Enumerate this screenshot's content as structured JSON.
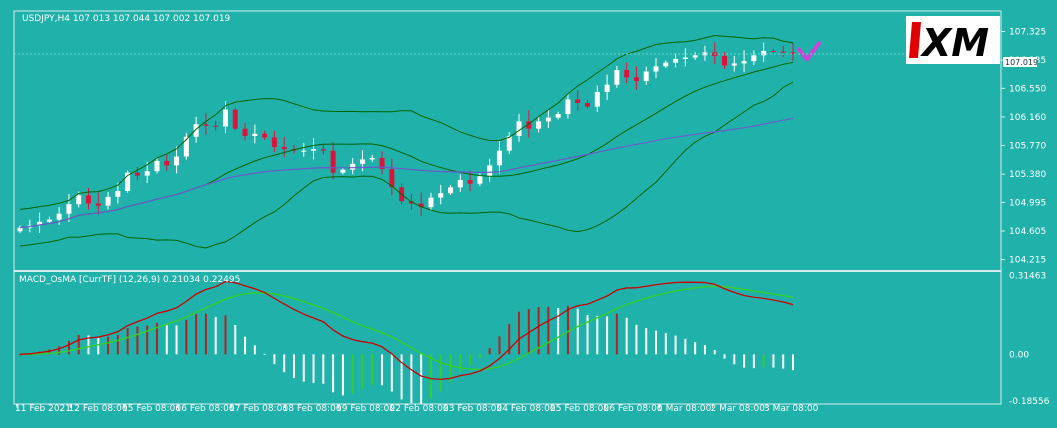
{
  "chart_data": {
    "type": "candlestick",
    "symbol_header": "USDJPY,H4  107.013 107.044 107.002 107.019",
    "current_price": "107.019",
    "price_axis": {
      "ticks": [
        "107.325",
        "106.935",
        "106.550",
        "106.160",
        "105.770",
        "105.380",
        "104.995",
        "104.605",
        "104.215"
      ],
      "ylim": [
        104.1,
        107.55
      ]
    },
    "x_ticks": [
      "11 Feb 2021",
      "12 Feb 08:00",
      "15 Feb 08:00",
      "16 Feb 08:00",
      "17 Feb 08:00",
      "18 Feb 08:00",
      "19 Feb 08:00",
      "22 Feb 08:00",
      "23 Feb 08:00",
      "24 Feb 08:00",
      "25 Feb 08:00",
      "26 Feb 08:00",
      "1 Mar 08:00",
      "2 Mar 08:00",
      "3 Mar 08:00"
    ],
    "close_series": [
      104.65,
      104.68,
      104.73,
      104.76,
      104.84,
      104.97,
      105.09,
      104.98,
      104.95,
      105.07,
      105.15,
      105.4,
      105.36,
      105.42,
      105.56,
      105.5,
      105.62,
      105.89,
      106.06,
      106.04,
      106.03,
      106.26,
      106.0,
      105.9,
      105.93,
      105.88,
      105.75,
      105.72,
      105.7,
      105.7,
      105.72,
      105.7,
      105.4,
      105.44,
      105.52,
      105.58,
      105.6,
      105.45,
      105.2,
      105.01,
      104.98,
      104.93,
      105.06,
      105.12,
      105.2,
      105.3,
      105.25,
      105.35,
      105.5,
      105.7,
      105.9,
      106.1,
      106.0,
      106.1,
      106.15,
      106.2,
      106.4,
      106.35,
      106.3,
      106.5,
      106.6,
      106.8,
      106.7,
      106.65,
      106.78,
      106.85,
      106.9,
      106.95,
      106.97,
      107.0,
      107.04,
      106.99,
      106.86,
      106.89,
      106.92,
      107.0,
      107.06,
      107.05,
      107.04,
      107.02
    ],
    "bollinger": {
      "period": 20
    },
    "moving_average": {
      "period": 50
    },
    "forecast_mark": "check",
    "indicator": {
      "label": "MACD_OsMA [CurrTF] (12,26,9) 0.21034 0.22495",
      "axis_ticks": [
        "0.31463",
        "0.00",
        "-0.18556"
      ],
      "ylim": [
        -0.19,
        0.32
      ]
    },
    "colors": {
      "background": "#20b2aa",
      "bull_candle": "#ffffff",
      "bear_candle": "#dc143c",
      "bollinger": "#006400",
      "moving_average": "#6a5acd",
      "macd_line": "#cc0000",
      "signal_line": "#32cd32",
      "hist_pos_rising": "#b22222",
      "hist_pos_falling": "#ffffff",
      "hist_neg_rising": "#32cd32",
      "hist_neg_falling": "#ffffff",
      "forecast": "#cc44dd"
    },
    "logo_text": "XM"
  }
}
